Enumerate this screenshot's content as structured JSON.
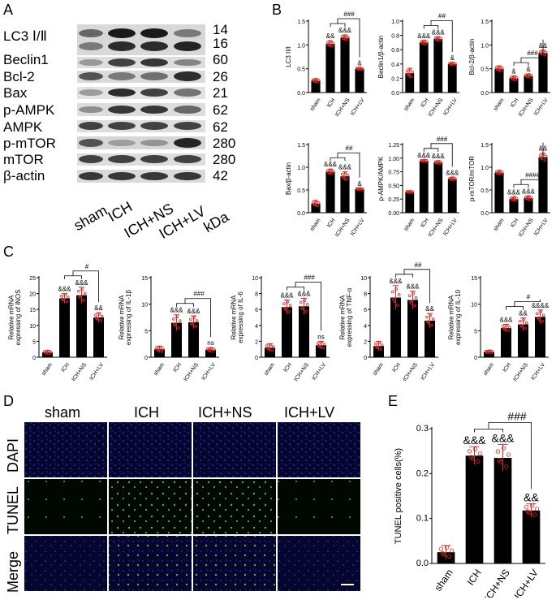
{
  "panels": {
    "A": "A",
    "B": "B",
    "C": "C",
    "D": "D",
    "E": "E"
  },
  "western_blot": {
    "rows": [
      {
        "label": "LC3 Ⅰ/Ⅱ",
        "kda": "14"
      },
      {
        "label": "",
        "kda": "16"
      },
      {
        "label": "Beclin1",
        "kda": "60"
      },
      {
        "label": "Bcl-2",
        "kda": "26"
      },
      {
        "label": "Bax",
        "kda": "21"
      },
      {
        "label": "p-AMPK",
        "kda": "62"
      },
      {
        "label": "AMPK",
        "kda": "62"
      },
      {
        "label": "p-mTOR",
        "kda": "280"
      },
      {
        "label": "mTOR",
        "kda": "280"
      },
      {
        "label": "β-actin",
        "kda": "42"
      }
    ],
    "lanes": [
      "sham",
      "ICH",
      "ICH+NS",
      "ICH+LV"
    ],
    "kda_label": "kDa"
  },
  "microscopy": {
    "columns": [
      "sham",
      "ICH",
      "ICH+NS",
      "ICH+LV"
    ],
    "rows": [
      "DAPI",
      "TUNEL",
      "Merge"
    ]
  },
  "colors": {
    "bar": "#000000",
    "points": "#e0271f",
    "error": "#e0271f"
  },
  "chart_data": [
    {
      "id": "B1",
      "type": "bar",
      "categories": [
        "sham",
        "ICH",
        "ICH+NS",
        "ICH+LV"
      ],
      "values": [
        0.25,
        1.02,
        1.15,
        0.5
      ],
      "errors": [
        0.04,
        0.07,
        0.06,
        0.02
      ],
      "ylabel": "LC3 II/I",
      "ylim": [
        0,
        1.5
      ],
      "yticks": [
        "0.0",
        "0.5",
        "1.0",
        "1.5"
      ],
      "marks": [
        "",
        "&&",
        "&&&",
        "&"
      ],
      "bracket": "###"
    },
    {
      "id": "B2",
      "type": "bar",
      "categories": [
        "sham",
        "ICH",
        "ICH+NS",
        "ICH+LV"
      ],
      "values": [
        0.27,
        0.7,
        0.75,
        0.4
      ],
      "errors": [
        0.07,
        0.03,
        0.03,
        0.02
      ],
      "ylabel": "Beclin1/β-actin",
      "ylim": [
        0,
        1.0
      ],
      "yticks": [
        "0.0",
        "0.2",
        "0.4",
        "0.6",
        "0.8",
        "1.0"
      ],
      "marks": [
        "",
        "&&&",
        "&&&",
        "&"
      ],
      "bracket": "##"
    },
    {
      "id": "B3",
      "type": "bar",
      "categories": [
        "sham",
        "ICH",
        "ICH+NS",
        "ICH+LV"
      ],
      "values": [
        0.5,
        0.3,
        0.35,
        0.83
      ],
      "errors": [
        0.06,
        0.05,
        0.04,
        0.06
      ],
      "ylabel": "Bcl-2/β-actin",
      "ylim": [
        0,
        1.5
      ],
      "yticks": [
        "0.0",
        "0.5",
        "1.0",
        "1.5"
      ],
      "marks": [
        "",
        "&",
        "&",
        "&&"
      ],
      "bracket": "###"
    },
    {
      "id": "B4",
      "type": "bar",
      "categories": [
        "sham",
        "ICH",
        "ICH+NS",
        "ICH+LV"
      ],
      "values": [
        0.2,
        0.9,
        0.8,
        0.52
      ],
      "errors": [
        0.07,
        0.06,
        0.1,
        0.02
      ],
      "ylabel": "Bax/β-actin",
      "ylim": [
        0,
        1.5
      ],
      "yticks": [
        "0.0",
        "0.5",
        "1.0",
        "1.5"
      ],
      "marks": [
        "",
        "&&&",
        "&&&",
        "&"
      ],
      "bracket": "##"
    },
    {
      "id": "B5",
      "type": "bar",
      "categories": [
        "sham",
        "ICH",
        "ICH+NS",
        "ICH+LV"
      ],
      "values": [
        0.38,
        0.95,
        0.92,
        0.62
      ],
      "errors": [
        0.02,
        0.02,
        0.03,
        0.03
      ],
      "ylabel": "p-AMPK/AMPK",
      "ylim": [
        0,
        1.25
      ],
      "yticks": [
        "0.00",
        "0.25",
        "0.50",
        "0.75",
        "1.00",
        "1.25"
      ],
      "marks": [
        "",
        "&&&",
        "&&&",
        "&&&"
      ],
      "bracket": "###"
    },
    {
      "id": "B6",
      "type": "bar",
      "categories": [
        "sham",
        "ICH",
        "ICH+NS",
        "ICH+LV"
      ],
      "values": [
        0.88,
        0.3,
        0.32,
        1.22
      ],
      "errors": [
        0.05,
        0.05,
        0.05,
        0.09
      ],
      "ylabel": "p-mTOR/mTOR",
      "ylim": [
        0,
        1.5
      ],
      "yticks": [
        "0.0",
        "0.5",
        "1.0",
        "1.5"
      ],
      "marks": [
        "",
        "&&&",
        "&&&",
        "&&"
      ],
      "bracket": "####"
    },
    {
      "id": "C1",
      "type": "bar",
      "categories": [
        "sham",
        "ICH",
        "ICH+NS",
        "ICH+LV"
      ],
      "values": [
        1.5,
        18.5,
        19.5,
        12.5
      ],
      "errors": [
        0.6,
        1.5,
        2.5,
        1.5
      ],
      "ylabel": "Relative mRNA expressing of iNOS",
      "ylim": [
        0,
        25
      ],
      "yticks": [
        "0",
        "5",
        "10",
        "15",
        "20",
        "25"
      ],
      "marks": [
        "",
        "&&&",
        "&&&",
        "&&"
      ],
      "bracket": "#"
    },
    {
      "id": "C2",
      "type": "bar",
      "categories": [
        "sham",
        "ICH",
        "ICH+NS",
        "ICH+LV"
      ],
      "values": [
        1.5,
        6.5,
        6.6,
        1.4
      ],
      "errors": [
        0.6,
        1.5,
        1.2,
        0.4
      ],
      "ylabel": "Relative mRNA expressing of IL-1β",
      "ylim": [
        0,
        15
      ],
      "yticks": [
        "0",
        "5",
        "10",
        "15"
      ],
      "marks": [
        "",
        "&&&",
        "&&&",
        "ns"
      ],
      "bracket": "###"
    },
    {
      "id": "C3",
      "type": "bar",
      "categories": [
        "sham",
        "ICH",
        "ICH+NS",
        "ICH+LV"
      ],
      "values": [
        1.2,
        6.3,
        6.4,
        1.5
      ],
      "errors": [
        0.5,
        0.9,
        1.0,
        0.5
      ],
      "ylabel": "Relative mRNA expressing of IL-6",
      "ylim": [
        0,
        10
      ],
      "yticks": [
        "0",
        "2",
        "4",
        "6",
        "8",
        "10"
      ],
      "marks": [
        "",
        "&&&",
        "&&&",
        "ns"
      ],
      "bracket": "###"
    },
    {
      "id": "C4",
      "type": "bar",
      "categories": [
        "sham",
        "ICH",
        "ICH+NS",
        "ICH+LV"
      ],
      "values": [
        1.4,
        7.5,
        7.2,
        4.6
      ],
      "errors": [
        0.6,
        1.5,
        1.1,
        0.9
      ],
      "ylabel": "Relative mRNA expressing of TNF-α",
      "ylim": [
        0,
        10
      ],
      "yticks": [
        "0",
        "2",
        "4",
        "6",
        "8",
        "10"
      ],
      "marks": [
        "",
        "&&&",
        "&&&",
        "&&"
      ],
      "bracket": "##"
    },
    {
      "id": "C5",
      "type": "bar",
      "categories": [
        "sham",
        "ICH",
        "ICH+NS",
        "ICH+LV"
      ],
      "values": [
        1.0,
        5.5,
        6.2,
        7.6
      ],
      "errors": [
        0.3,
        0.7,
        1.2,
        1.3
      ],
      "ylabel": "Relative mRNA expressing of IL-10",
      "ylim": [
        0,
        15
      ],
      "yticks": [
        "0",
        "5",
        "10",
        "15"
      ],
      "marks": [
        "",
        "&&&",
        "&&",
        "&&&&"
      ],
      "bracket": "#"
    },
    {
      "id": "E",
      "type": "bar",
      "categories": [
        "sham",
        "ICH",
        "ICH+NS",
        "ICH+LV"
      ],
      "values": [
        0.025,
        0.24,
        0.235,
        0.118
      ],
      "errors": [
        0.015,
        0.02,
        0.03,
        0.015
      ],
      "ylabel": "TUNEL positive cells(%)",
      "ylim": [
        0,
        0.3
      ],
      "yticks": [
        "0.0",
        "0.1",
        "0.2",
        "0.3"
      ],
      "marks": [
        "",
        "&&&",
        "&&&",
        "&&"
      ],
      "bracket": "###"
    }
  ]
}
